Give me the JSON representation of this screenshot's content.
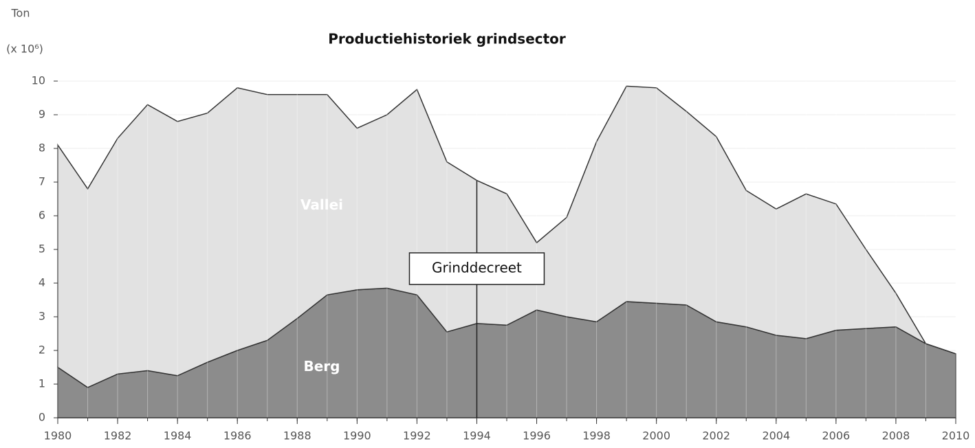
{
  "chart_data": {
    "type": "stacked_area",
    "title": "Productiehistoriek grindsector",
    "y_axis_label": "Ton",
    "y_axis_unit": "(x 10⁶)",
    "x": [
      1980,
      1981,
      1982,
      1983,
      1984,
      1985,
      1986,
      1987,
      1988,
      1989,
      1990,
      1991,
      1992,
      1993,
      1994,
      1995,
      1996,
      1997,
      1998,
      1999,
      2000,
      2001,
      2002,
      2003,
      2004,
      2005,
      2006,
      2007,
      2008,
      2009,
      2010
    ],
    "series": [
      {
        "name": "Berg",
        "color": "#8c8c8c",
        "values": [
          1.5,
          0.9,
          1.3,
          1.4,
          1.25,
          1.65,
          2.0,
          2.3,
          2.95,
          3.65,
          3.8,
          3.85,
          3.65,
          2.55,
          2.8,
          2.75,
          3.2,
          3.0,
          2.85,
          3.45,
          3.4,
          3.35,
          2.85,
          2.7,
          2.45,
          2.35,
          2.6,
          2.65,
          2.7,
          2.2,
          1.9
        ]
      },
      {
        "name": "Vallei",
        "color": "#e2e2e2",
        "values": [
          6.6,
          5.9,
          7.0,
          7.9,
          7.55,
          7.4,
          7.8,
          7.3,
          6.65,
          5.95,
          4.8,
          5.15,
          6.1,
          5.05,
          4.25,
          3.9,
          2.0,
          2.95,
          5.35,
          6.4,
          6.4,
          5.75,
          5.5,
          4.05,
          3.75,
          4.3,
          3.75,
          2.35,
          1.0,
          0,
          0
        ]
      }
    ],
    "annotation": {
      "text": "Grinddecreet",
      "x": 1994
    },
    "xlim": [
      1980,
      2010
    ],
    "xticks": [
      1980,
      1982,
      1984,
      1986,
      1988,
      1990,
      1992,
      1994,
      1996,
      1998,
      2000,
      2002,
      2004,
      2006,
      2008,
      2010
    ],
    "ylim": [
      0,
      10
    ],
    "yticks": [
      0,
      1,
      2,
      3,
      4,
      5,
      6,
      7,
      8,
      9,
      10
    ],
    "grid": true
  }
}
